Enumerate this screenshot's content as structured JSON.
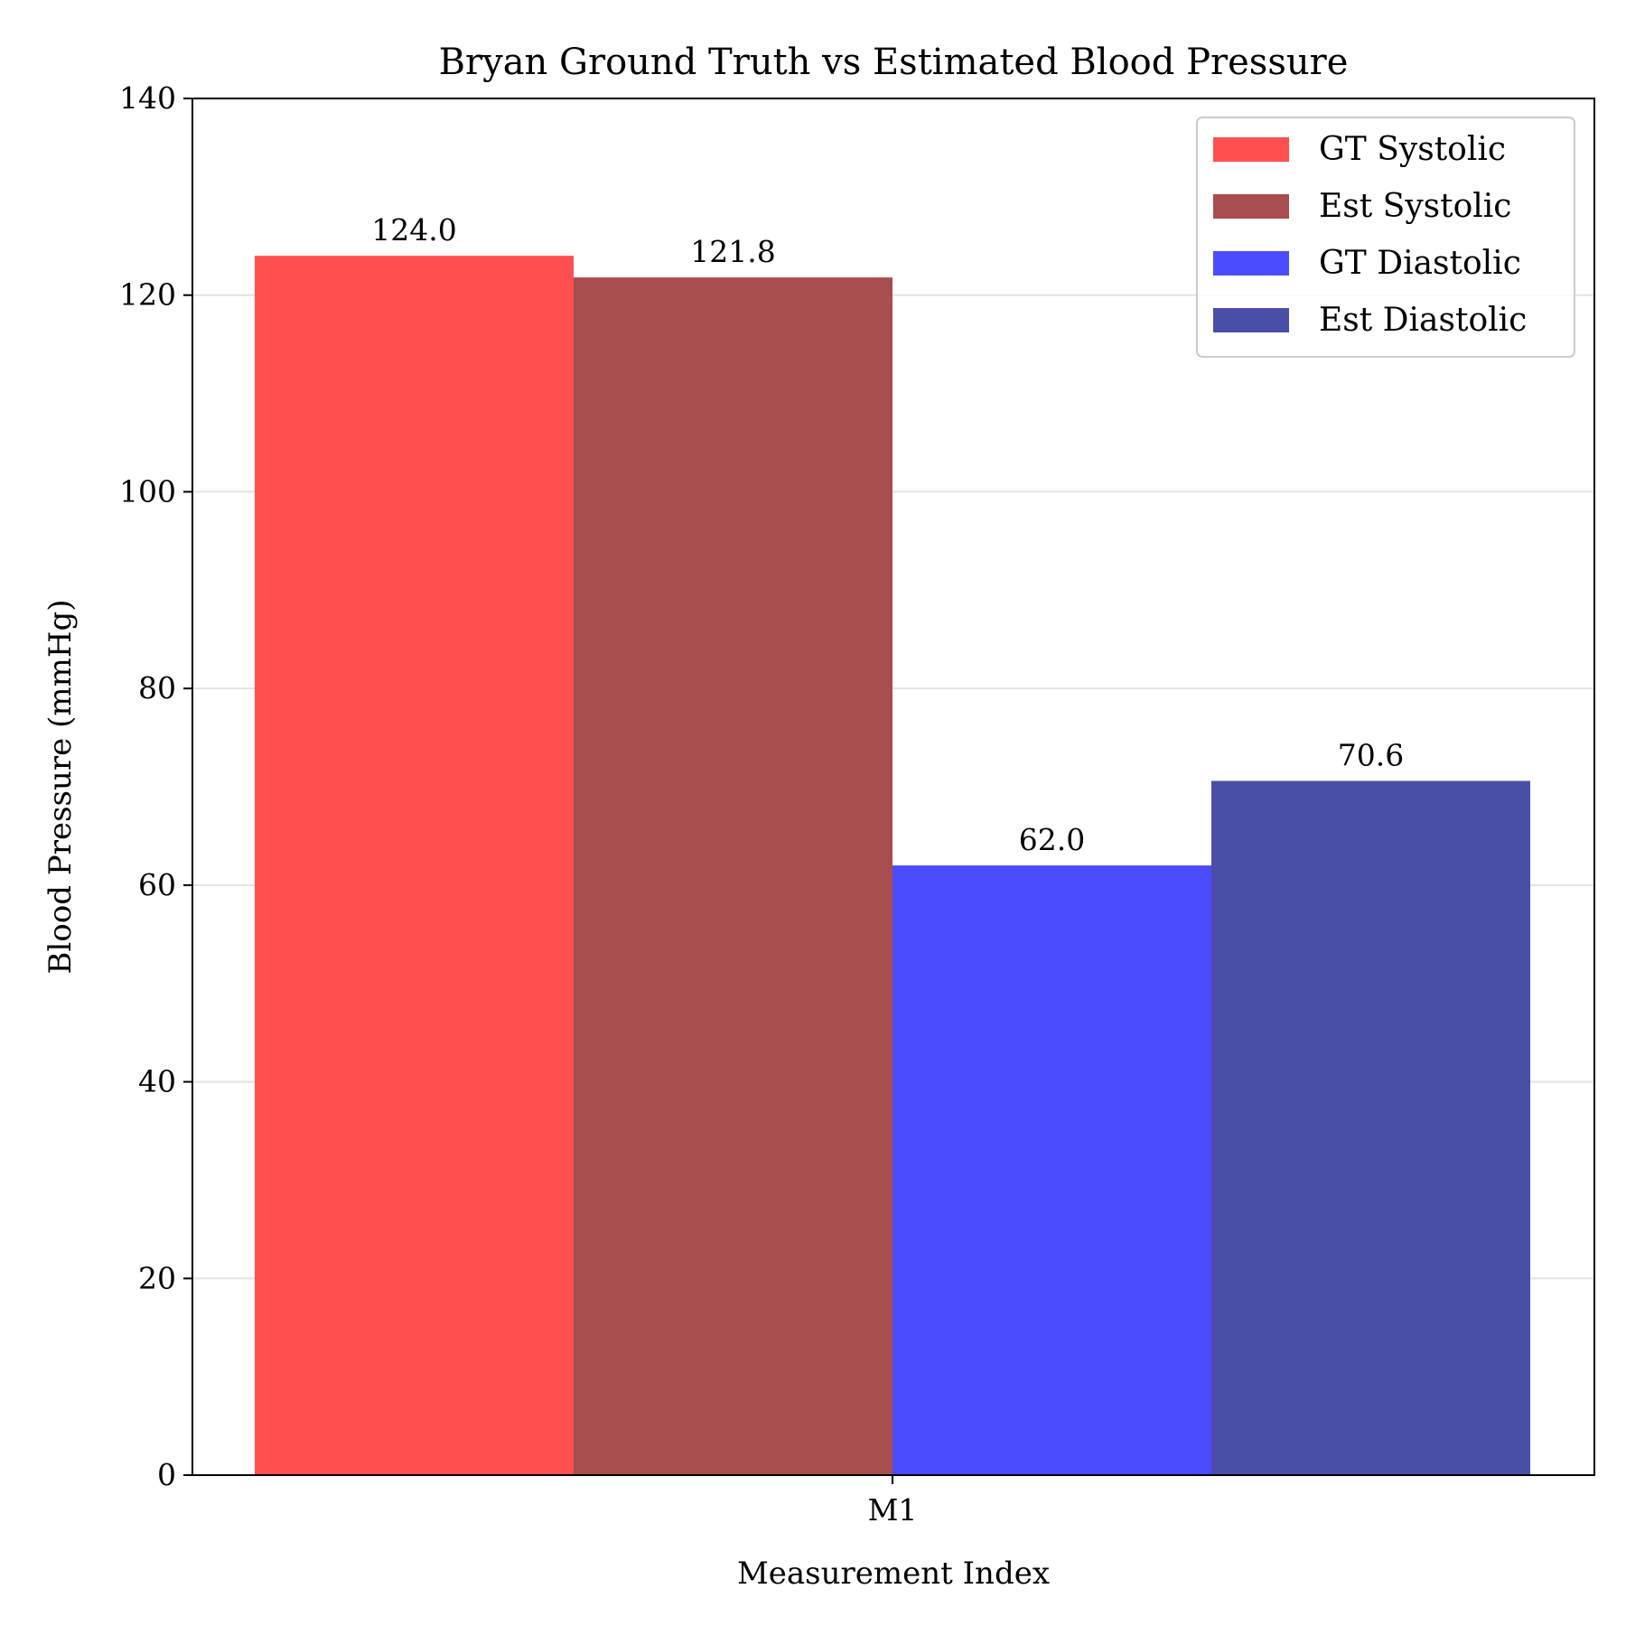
{
  "chart_data": {
    "type": "bar",
    "title": "Bryan Ground Truth vs Estimated Blood Pressure",
    "xlabel": "Measurement Index",
    "ylabel": "Blood Pressure (mmHg)",
    "categories": [
      "M1"
    ],
    "ylim": [
      0,
      140
    ],
    "yticks": [
      0,
      20,
      40,
      60,
      80,
      100,
      120,
      140
    ],
    "grid": "y",
    "legend_position": "top-right",
    "series": [
      {
        "name": "GT Systolic",
        "values": [
          124.0
        ],
        "color": "#ff4f4f",
        "label": "124.0"
      },
      {
        "name": "Est Systolic",
        "values": [
          121.8
        ],
        "color": "#a84d4e",
        "label": "121.8"
      },
      {
        "name": "GT Diastolic",
        "values": [
          62.0
        ],
        "color": "#4c4cff",
        "label": "62.0"
      },
      {
        "name": "Est Diastolic",
        "values": [
          70.6
        ],
        "color": "#4a4ea8",
        "label": "70.6"
      }
    ]
  }
}
